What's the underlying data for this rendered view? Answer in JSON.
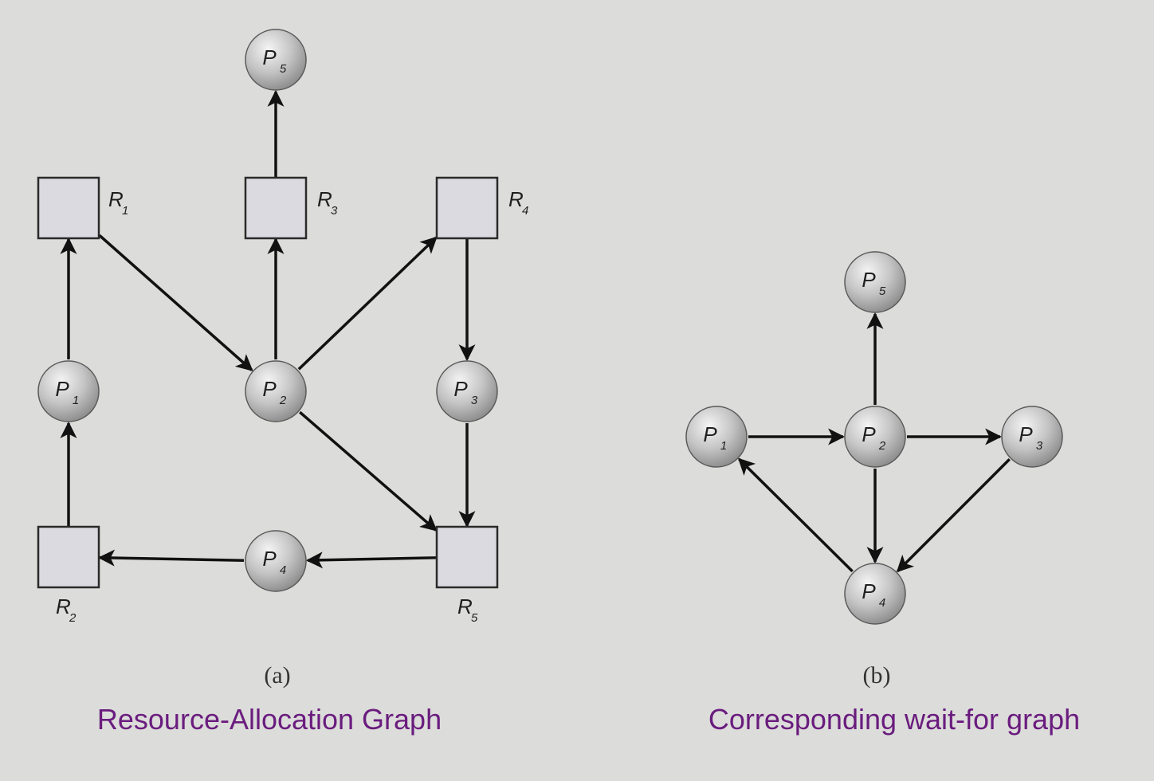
{
  "diagram_a": {
    "panel_label": "(a)",
    "caption": "Resource-Allocation Graph",
    "resources": [
      {
        "id": "R1",
        "base": "R",
        "sub": "1"
      },
      {
        "id": "R2",
        "base": "R",
        "sub": "2"
      },
      {
        "id": "R3",
        "base": "R",
        "sub": "3"
      },
      {
        "id": "R4",
        "base": "R",
        "sub": "4"
      },
      {
        "id": "R5",
        "base": "R",
        "sub": "5"
      }
    ],
    "processes": [
      {
        "id": "P1",
        "base": "P",
        "sub": "1"
      },
      {
        "id": "P2",
        "base": "P",
        "sub": "2"
      },
      {
        "id": "P3",
        "base": "P",
        "sub": "3"
      },
      {
        "id": "P4",
        "base": "P",
        "sub": "4"
      },
      {
        "id": "P5",
        "base": "P",
        "sub": "5"
      }
    ],
    "edges": [
      {
        "from": "R3",
        "to": "P5"
      },
      {
        "from": "P1",
        "to": "R1"
      },
      {
        "from": "R1",
        "to": "P2"
      },
      {
        "from": "P2",
        "to": "R3"
      },
      {
        "from": "P2",
        "to": "R4"
      },
      {
        "from": "R4",
        "to": "P3"
      },
      {
        "from": "R2",
        "to": "P1"
      },
      {
        "from": "P2",
        "to": "R5"
      },
      {
        "from": "P3",
        "to": "R5"
      },
      {
        "from": "R5",
        "to": "P4"
      },
      {
        "from": "P4",
        "to": "R2"
      }
    ]
  },
  "diagram_b": {
    "panel_label": "(b)",
    "caption": "Corresponding wait-for graph",
    "processes": [
      {
        "id": "P1",
        "base": "P",
        "sub": "1"
      },
      {
        "id": "P2",
        "base": "P",
        "sub": "2"
      },
      {
        "id": "P3",
        "base": "P",
        "sub": "3"
      },
      {
        "id": "P4",
        "base": "P",
        "sub": "4"
      },
      {
        "id": "P5",
        "base": "P",
        "sub": "5"
      }
    ],
    "edges": [
      {
        "from": "P2",
        "to": "P5"
      },
      {
        "from": "P1",
        "to": "P2"
      },
      {
        "from": "P2",
        "to": "P3"
      },
      {
        "from": "P2",
        "to": "P4"
      },
      {
        "from": "P3",
        "to": "P4"
      },
      {
        "from": "P4",
        "to": "P1"
      }
    ]
  },
  "colors": {
    "background": "#dcdcda",
    "caption": "#6a1c7e",
    "resource_fill": "#dadae0",
    "edge": "#111111"
  }
}
